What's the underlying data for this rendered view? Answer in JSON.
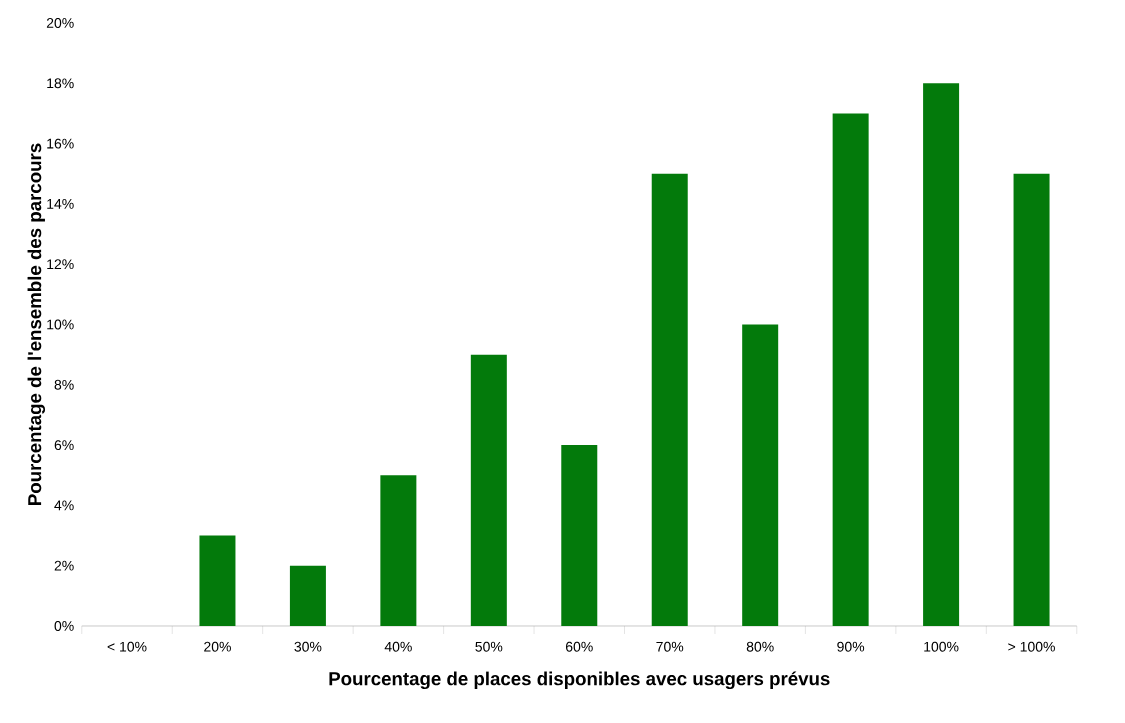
{
  "chart_data": {
    "type": "bar",
    "xlabel": "Pourcentage de places disponibles avec usagers prévus",
    "ylabel": "Pourcentage de l'ensemble des parcours",
    "categories": [
      "< 10%",
      "20%",
      "30%",
      "40%",
      "50%",
      "60%",
      "70%",
      "80%",
      "90%",
      "100%",
      "> 100%"
    ],
    "values": [
      0,
      3,
      2,
      5,
      9,
      6,
      15,
      10,
      17,
      18,
      15
    ],
    "color": "#037a0b",
    "ylim": [
      0,
      20
    ],
    "yticks": [
      {
        "value": 0,
        "label": "0%"
      },
      {
        "value": 2,
        "label": "2%"
      },
      {
        "value": 4,
        "label": "4%"
      },
      {
        "value": 6,
        "label": "6%"
      },
      {
        "value": 8,
        "label": "8%"
      },
      {
        "value": 10,
        "label": "10%"
      },
      {
        "value": 12,
        "label": "12%"
      },
      {
        "value": 14,
        "label": "14%"
      },
      {
        "value": 16,
        "label": "16%"
      },
      {
        "value": 18,
        "label": "18%"
      },
      {
        "value": 20,
        "label": "20%"
      }
    ]
  }
}
